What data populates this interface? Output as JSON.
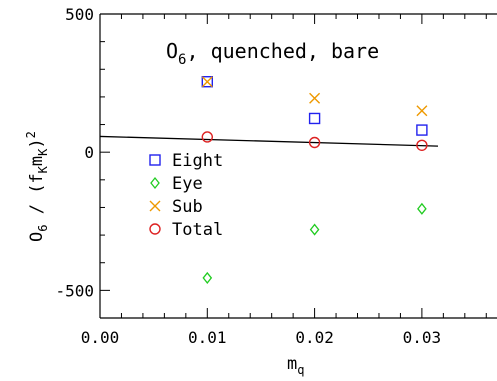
{
  "chart_data": {
    "type": "scatter",
    "title": {
      "main": "O",
      "sub": "6",
      "rest": ", quenched, bare"
    },
    "xlabel": {
      "main": "m",
      "sub": "q"
    },
    "ylabel": {
      "p1": "O",
      "s1": "6",
      "p2": " / (f",
      "s2": "K",
      "p3": "m",
      "s3": "K",
      "p4": ")",
      "sup": "2"
    },
    "xlim": [
      0.0,
      0.037
    ],
    "ylim": [
      -600,
      500
    ],
    "xticks": [
      0.0,
      0.01,
      0.02,
      0.03
    ],
    "xtick_labels": [
      "0.00",
      "0.01",
      "0.02",
      "0.03"
    ],
    "yticks": [
      -500,
      0,
      500
    ],
    "ytick_labels": [
      "-500",
      "0",
      "500"
    ],
    "x": [
      0.01,
      0.02,
      0.03
    ],
    "series": [
      {
        "name": "Eight",
        "marker": "square",
        "color": "#2222ee",
        "values": [
          255,
          122,
          80
        ]
      },
      {
        "name": "Eye",
        "marker": "diamond",
        "color": "#22cc22",
        "values": [
          -455,
          -280,
          -205
        ]
      },
      {
        "name": "Sub",
        "marker": "x",
        "color": "#ee9900",
        "values": [
          255,
          195,
          150
        ]
      },
      {
        "name": "Total",
        "marker": "circle",
        "color": "#dd2222",
        "values": [
          55,
          35,
          25
        ]
      }
    ],
    "fit_line": {
      "color": "#000000",
      "x": [
        0.0,
        0.0315
      ],
      "y": [
        57,
        22
      ]
    },
    "legend": "left-center",
    "grid": false
  }
}
